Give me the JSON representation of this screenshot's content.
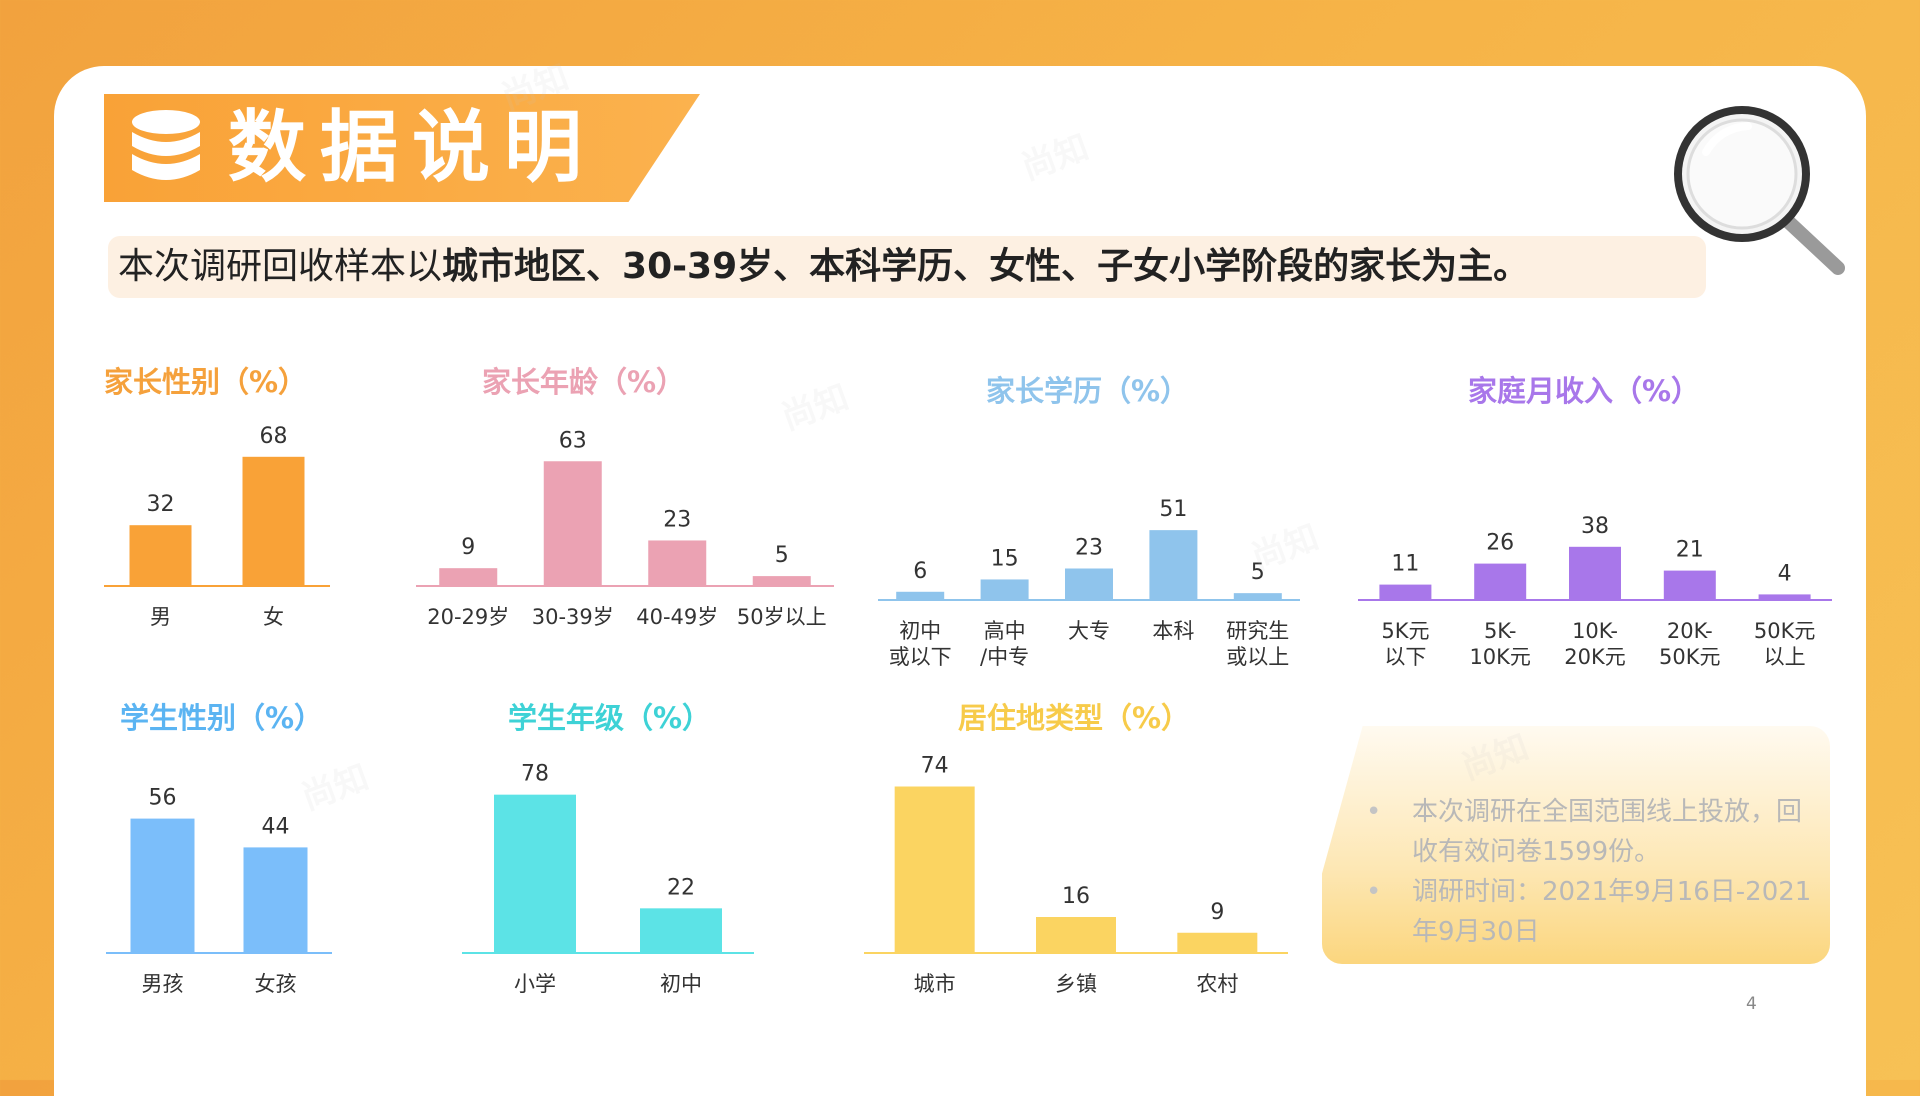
{
  "header": {
    "title": "数据说明"
  },
  "summary": {
    "prefix": "本次调研回收样本以",
    "highlight": "城市地区、30-39岁、本科学历、女性、子女小学阶段的家长为主。"
  },
  "notes": [
    "本次调研在全国范围线上投放，回收有效问卷1599份。",
    "调研时间：2021年9月16日-2021年9月30日"
  ],
  "page_number": "4",
  "watermark": "尚知",
  "colors": {
    "orange": "#f9a237",
    "pink": "#eba2b3",
    "lightblue": "#8fc4ec",
    "purple": "#a877ea",
    "blue": "#7bbefa",
    "cyan": "#5ce3e6",
    "yellow": "#fbd461"
  },
  "chart_data": [
    {
      "type": "bar",
      "title": "家长性别（%）",
      "color": "#f9a237",
      "categories": [
        "男",
        "女"
      ],
      "values": [
        32,
        68
      ]
    },
    {
      "type": "bar",
      "title": "家长年龄（%）",
      "color": "#eba2b3",
      "categories": [
        "20-29岁",
        "30-39岁",
        "40-49岁",
        "50岁以上"
      ],
      "values": [
        9,
        63,
        23,
        5
      ]
    },
    {
      "type": "bar",
      "title": "家长学历（%）",
      "color": "#8fc4ec",
      "categories": [
        [
          "初中",
          "或以下"
        ],
        [
          "高中",
          "/中专"
        ],
        [
          "大专"
        ],
        [
          "本科"
        ],
        [
          "研究生",
          "或以上"
        ]
      ],
      "values": [
        6,
        15,
        23,
        51,
        5
      ]
    },
    {
      "type": "bar",
      "title": "家庭月收入（%）",
      "color": "#a877ea",
      "categories": [
        [
          "5K元",
          "以下"
        ],
        [
          "5K-",
          "10K元"
        ],
        [
          "10K-",
          "20K元"
        ],
        [
          "20K-",
          "50K元"
        ],
        [
          "50K元",
          "以上"
        ]
      ],
      "values": [
        11,
        26,
        38,
        21,
        4
      ]
    },
    {
      "type": "bar",
      "title": "学生性别（%）",
      "color": "#7bbefa",
      "categories": [
        "男孩",
        "女孩"
      ],
      "values": [
        56,
        44
      ]
    },
    {
      "type": "bar",
      "title": "学生年级（%）",
      "color": "#5ce3e6",
      "categories": [
        "小学",
        "初中"
      ],
      "values": [
        78,
        22
      ]
    },
    {
      "type": "bar",
      "title": "居住地类型（%）",
      "color": "#fbd461",
      "categories": [
        "城市",
        "乡镇",
        "农村"
      ],
      "values": [
        74,
        16,
        9
      ]
    }
  ]
}
